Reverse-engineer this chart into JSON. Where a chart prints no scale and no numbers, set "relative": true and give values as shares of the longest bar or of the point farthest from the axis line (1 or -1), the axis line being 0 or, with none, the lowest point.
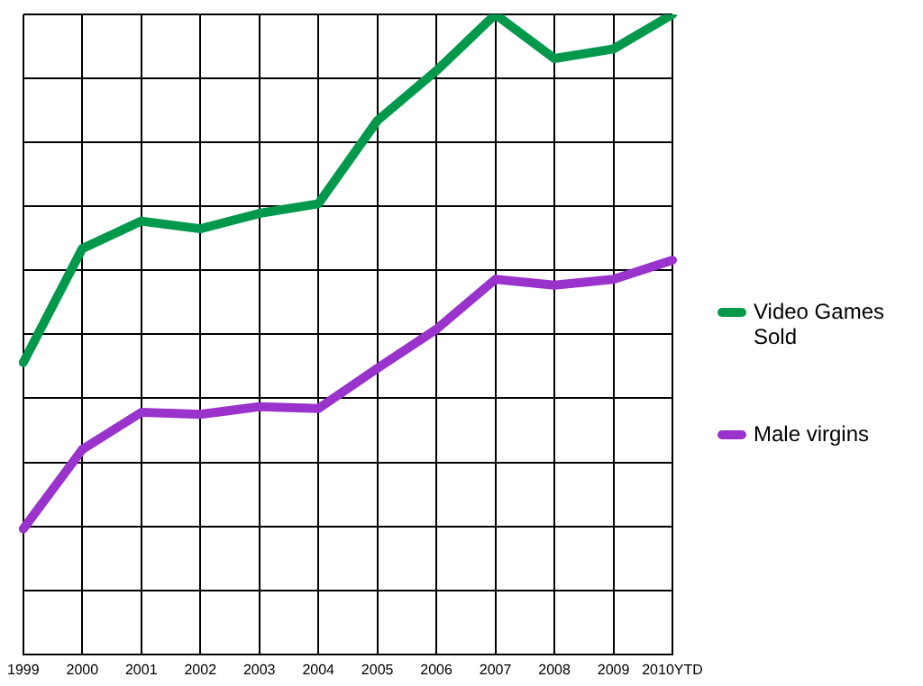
{
  "chart_data": {
    "type": "line",
    "relative": true,
    "categories": [
      "1999",
      "2000",
      "2001",
      "2002",
      "2003",
      "2004",
      "2005",
      "2006",
      "2007",
      "2008",
      "2009",
      "2010YTD"
    ],
    "series": [
      {
        "name": "Video Games Sold",
        "color": "#00994c",
        "values": [
          0.456,
          0.634,
          0.677,
          0.665,
          0.689,
          0.704,
          0.834,
          0.912,
          1,
          0.931,
          0.946,
          1
        ]
      },
      {
        "name": "Male virgins",
        "color": "#9933cc",
        "values": [
          0.196,
          0.32,
          0.378,
          0.375,
          0.387,
          0.384,
          0.447,
          0.508,
          0.586,
          0.577,
          0.586,
          0.616
        ]
      }
    ],
    "grid": true,
    "legend": "right",
    "marker": "none",
    "line_style": "solid"
  }
}
